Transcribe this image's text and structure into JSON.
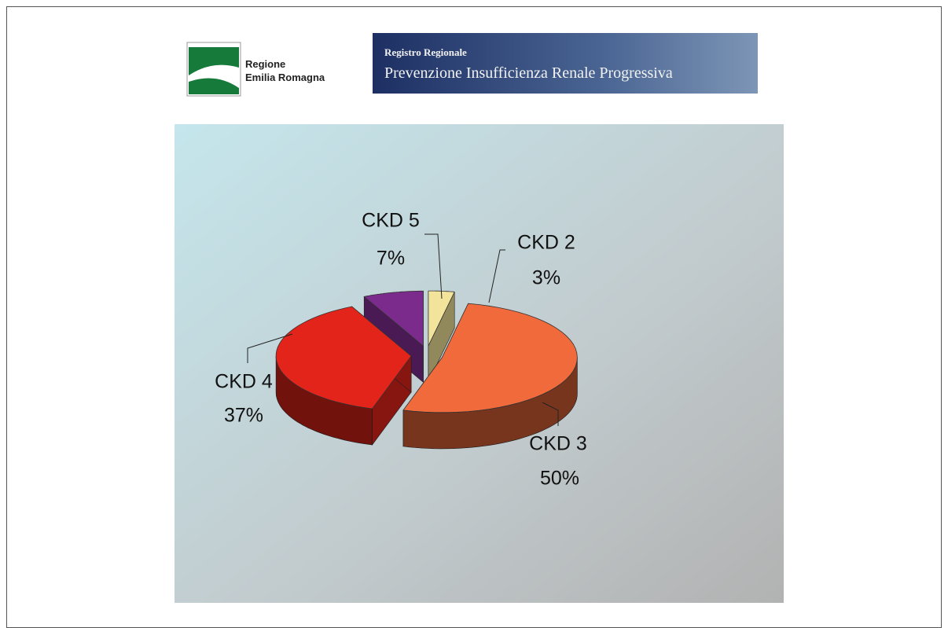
{
  "header": {
    "logo_line1": "Regione",
    "logo_line2": "Emilia Romagna",
    "banner_line1": "Registro Regionale",
    "banner_line2": "Prevenzione Insufficienza Renale Progressiva"
  },
  "chart_data": {
    "type": "pie3d",
    "categories": [
      "CKD 2",
      "CKD 3",
      "CKD 4",
      "CKD 5"
    ],
    "values": [
      3,
      50,
      37,
      7
    ],
    "value_labels": [
      "3%",
      "50%",
      "37%",
      "7%"
    ],
    "colors": [
      "#f2e49a",
      "#f06a3c",
      "#e3241a",
      "#7b2b8c"
    ]
  }
}
